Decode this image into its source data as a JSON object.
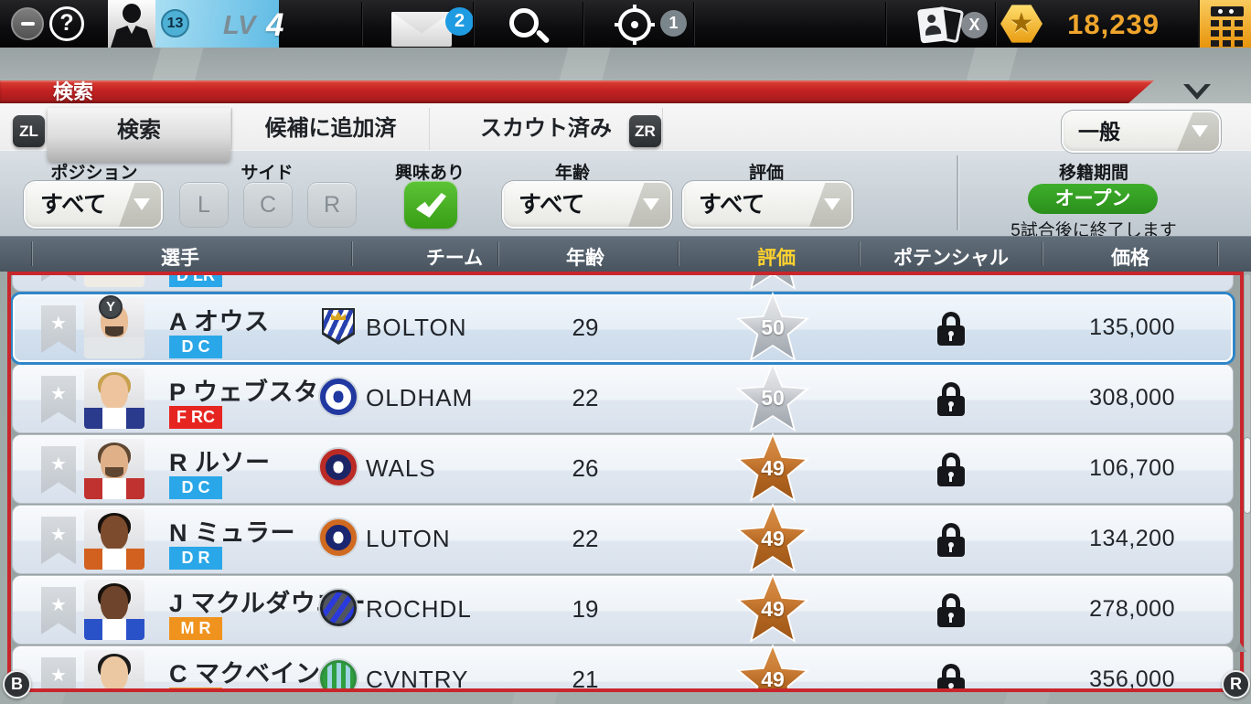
{
  "topbar": {
    "level_badge": "13",
    "lv_label": "LV",
    "lv_value": "4",
    "mail_badge": "2",
    "target_badge": "1",
    "cards_badge": "X",
    "currency": "18,239",
    "gold_color": "#f0a62c"
  },
  "title_bar": {
    "title": "検索"
  },
  "tabs": {
    "zl": "ZL",
    "zr": "ZR",
    "items": [
      {
        "label": "検索",
        "selected": true
      },
      {
        "label": "候補に追加済",
        "selected": false
      },
      {
        "label": "スカウト済み",
        "selected": false
      }
    ],
    "category_value": "一般"
  },
  "filters": {
    "position_label": "ポジション",
    "position_value": "すべて",
    "side_label": "サイド",
    "side_options": [
      "L",
      "C",
      "R"
    ],
    "interested_label": "興味あり",
    "age_label": "年齢",
    "age_value": "すべて",
    "rating_label": "評価",
    "rating_value": "すべて",
    "transfer_label": "移籍期間",
    "transfer_status": "オープン",
    "transfer_note": "5試合後に終了します",
    "status_green": "#31a221"
  },
  "table": {
    "columns": [
      "選手",
      "チーム",
      "年齢",
      "評価",
      "ポテンシャル",
      "価格"
    ],
    "sorted_column_index": 3,
    "sorted_color": "#ffd22e",
    "selected_border_color": "#2e86c8",
    "partial_top_row": {
      "pos": "D LR",
      "pos_color": "#2aa7e8",
      "tier": "silver"
    },
    "players": [
      {
        "name": "A オウス",
        "pos": "D C",
        "pos_color": "#2aa7e8",
        "team": "BOLTON",
        "age": "29",
        "rating": "50",
        "tier": "silver",
        "price": "135,000",
        "selected": true,
        "button_badge": "Y",
        "crest": {
          "style": "shield-stripes",
          "c1": "#ffffff",
          "c2": "#2741b0",
          "accent": "#d8a520"
        },
        "avatar": {
          "skin": "#e9bd96",
          "hair": "",
          "facial": "#4a3a2e",
          "shirt": "#e3e6e9",
          "shirt2": ""
        }
      },
      {
        "name": "P ウェブスター",
        "pos": "F RC",
        "pos_color": "#e62520",
        "team": "OLDHAM",
        "age": "22",
        "rating": "50",
        "tier": "silver",
        "price": "308,000",
        "selected": false,
        "button_badge": "",
        "crest": {
          "style": "circle-ring",
          "c1": "#ffffff",
          "ring": "#2038a0",
          "glyph": "#2038a0"
        },
        "avatar": {
          "skin": "#edc49d",
          "hair": "#c8a14e",
          "facial": "",
          "shirt": "#2a3a8c",
          "shirt2": "#ffffff"
        }
      },
      {
        "name": "R ルソー",
        "pos": "D C",
        "pos_color": "#2aa7e8",
        "team": "WALS",
        "age": "26",
        "rating": "49",
        "tier": "bronze",
        "price": "106,700",
        "selected": false,
        "button_badge": "",
        "crest": {
          "style": "circle-ring",
          "c1": "#1b2566",
          "ring": "#bb2b26",
          "glyph": "#ffffff"
        },
        "avatar": {
          "skin": "#e0b089",
          "hair": "#5f4732",
          "facial": "#5f4732",
          "shirt": "#c03230",
          "shirt2": "#ffffff"
        }
      },
      {
        "name": "N ミュラー",
        "pos": "D R",
        "pos_color": "#2aa7e8",
        "team": "LUTON",
        "age": "22",
        "rating": "49",
        "tier": "bronze",
        "price": "134,200",
        "selected": false,
        "button_badge": "",
        "crest": {
          "style": "circle-ring",
          "c1": "#1a2670",
          "ring": "#d06a20",
          "glyph": "#ffffff"
        },
        "avatar": {
          "skin": "#7c4b2d",
          "hair": "#17110d",
          "facial": "",
          "shirt": "#d2601e",
          "shirt2": "#ffffff"
        }
      },
      {
        "name": "J マクルダウニー",
        "pos": "M R",
        "pos_color": "#f0931e",
        "team": "ROCHDL",
        "age": "19",
        "rating": "49",
        "tier": "bronze",
        "price": "278,000",
        "selected": false,
        "button_badge": "",
        "crest": {
          "style": "circle-stripes",
          "c1": "#2a3adc",
          "c2": "#51565e",
          "ring": "#23282e"
        },
        "avatar": {
          "skin": "#6e452c",
          "hair": "#17110d",
          "facial": "",
          "shirt": "#2a52c8",
          "shirt2": "#ffffff"
        }
      },
      {
        "name": "C マクベイン",
        "pos": "",
        "pos_color": "#f0931e",
        "team": "CVNTRY",
        "age": "21",
        "rating": "49",
        "tier": "bronze",
        "price": "356,000",
        "selected": false,
        "button_badge": "",
        "crest": {
          "style": "circle-vstripes",
          "c1": "#2f9e3e",
          "c2": "#9fd4e4",
          "ring": "#2f8e3e"
        },
        "avatar": {
          "skin": "#ecc8a2",
          "hair": "#1a1a1a",
          "facial": "",
          "shirt": "#dfe3e7",
          "shirt2": ""
        }
      }
    ]
  },
  "icons": {
    "ribbon_star": "★",
    "coin_star": "★"
  },
  "controller": {
    "bottom_left": "B",
    "bottom_right": "R"
  }
}
